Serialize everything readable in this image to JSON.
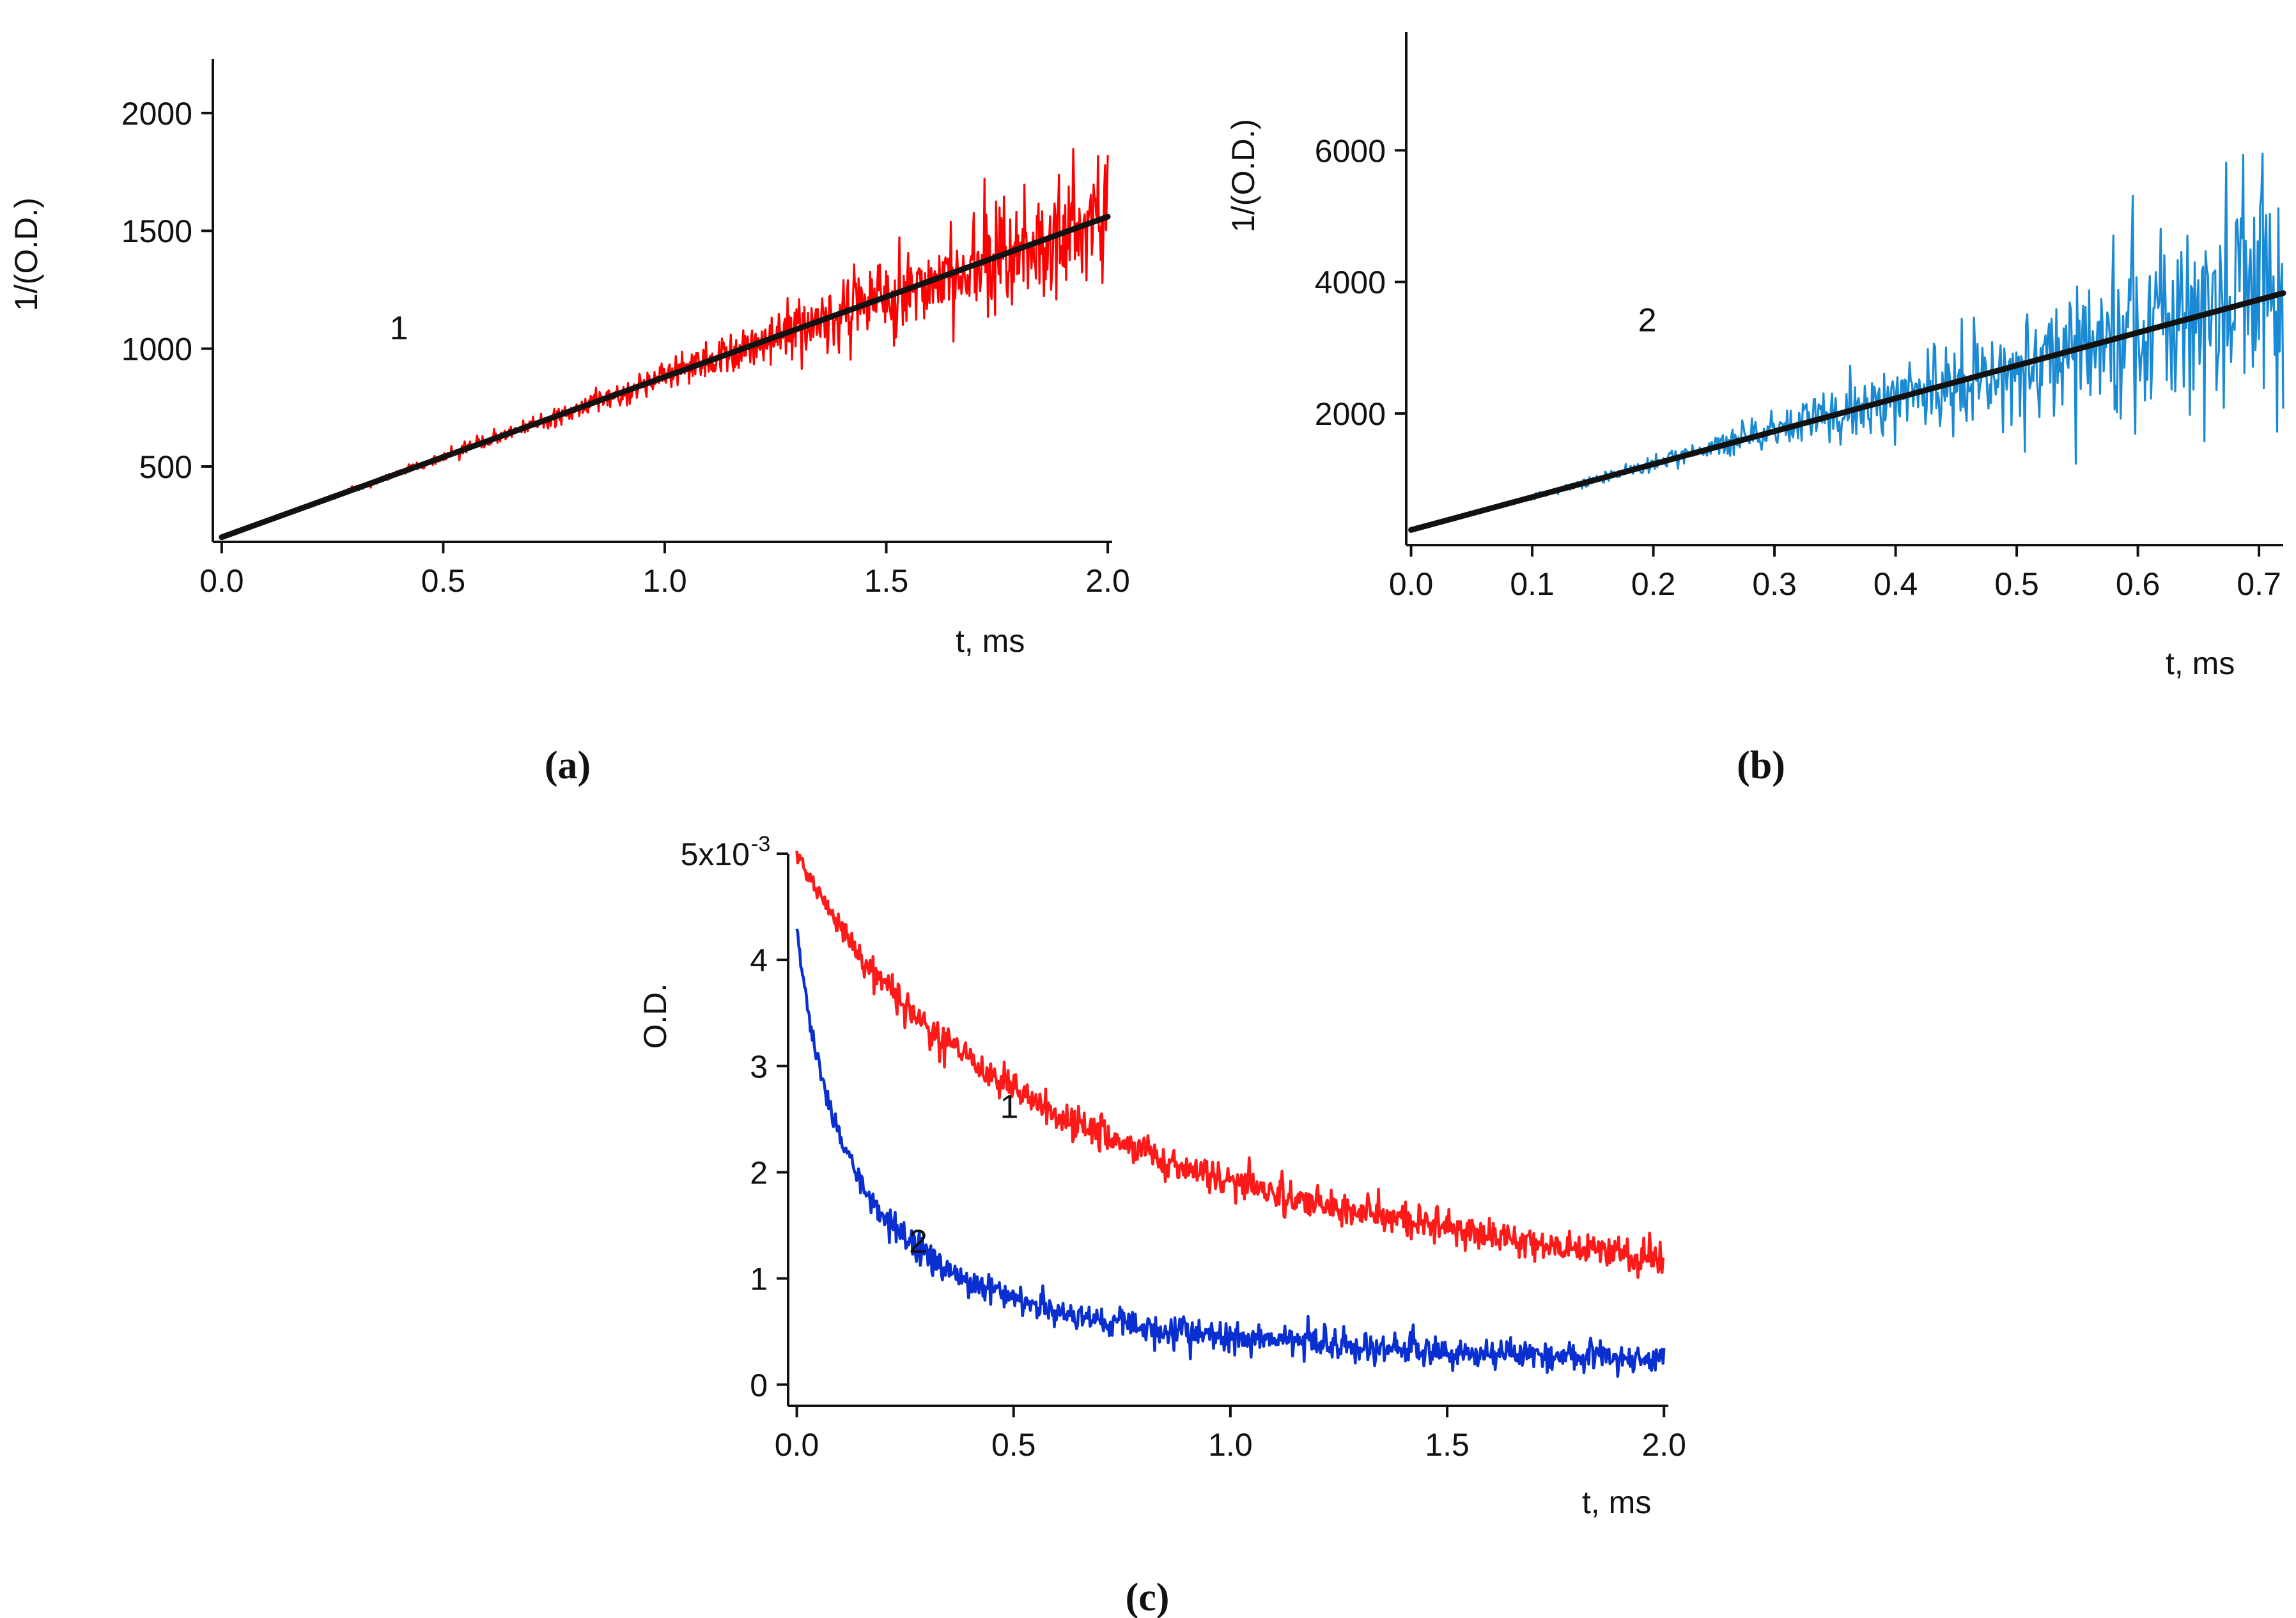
{
  "chart_data": [
    {
      "id": "a",
      "type": "line",
      "panel_label": "(a)",
      "xlabel": "t, ms",
      "ylabel": "1/(O.D.)",
      "xlim": [
        -0.02,
        2.01
      ],
      "ylim": [
        180,
        2230
      ],
      "xticks": [
        0.0,
        0.5,
        1.0,
        1.5,
        2.0
      ],
      "xtick_labels": [
        "0.0",
        "0.5",
        "1.0",
        "1.5",
        "2.0"
      ],
      "yticks": [
        500,
        1000,
        1500,
        2000
      ],
      "ytick_labels": [
        "500",
        "1000",
        "1500",
        "2000"
      ],
      "curve_label": "1",
      "curve_label_pos": [
        0.4,
        1040
      ],
      "series": [
        {
          "name": "data 1",
          "color": "#ff0000",
          "kind": "noisy",
          "x_range": [
            0,
            2.0
          ],
          "start": 200,
          "slope": 680,
          "noise": [
            0.01,
            0.1
          ],
          "points": 1000,
          "seed": 7
        },
        {
          "name": "fit 1",
          "color": "#111111",
          "kind": "fit",
          "x_range": [
            0,
            2.0
          ],
          "y": [
            200,
            1560
          ]
        }
      ]
    },
    {
      "id": "b",
      "type": "line",
      "panel_label": "(b)",
      "xlabel": "t, ms",
      "ylabel": "1/(O.D.)",
      "xlim": [
        -0.004,
        0.72
      ],
      "ylim": [
        0,
        7800
      ],
      "xticks": [
        0.0,
        0.1,
        0.2,
        0.3,
        0.4,
        0.5,
        0.6,
        0.7
      ],
      "xtick_labels": [
        "0.0",
        "0.1",
        "0.2",
        "0.3",
        "0.4",
        "0.5",
        "0.6",
        "0.7"
      ],
      "yticks": [
        2000,
        4000,
        6000
      ],
      "ytick_labels": [
        "2000",
        "4000",
        "6000"
      ],
      "curve_label": "2",
      "curve_label_pos": [
        0.195,
        3250
      ],
      "series": [
        {
          "name": "data 2",
          "color": "#1a8ad4",
          "kind": "noisy",
          "x_range": [
            0,
            0.72
          ],
          "start": 230,
          "slope": 5000,
          "noise": [
            0.02,
            0.28
          ],
          "points": 720,
          "seed": 13
        },
        {
          "name": "fit 2",
          "color": "#111111",
          "kind": "fit",
          "x_range": [
            0,
            0.72
          ],
          "y": [
            230,
            3830
          ]
        }
      ]
    },
    {
      "id": "c",
      "type": "line",
      "panel_label": "(c)",
      "xlabel": "t, ms",
      "ylabel": "O.D.",
      "xlim": [
        -0.02,
        2.01
      ],
      "ylim": [
        -0.0002,
        0.005
      ],
      "xticks": [
        0.0,
        0.5,
        1.0,
        1.5,
        2.0
      ],
      "xtick_labels": [
        "0.0",
        "0.5",
        "1.0",
        "1.5",
        "2.0"
      ],
      "yticks": [
        0,
        0.001,
        0.002,
        0.003,
        0.004,
        0.005
      ],
      "ytick_labels": [
        "0",
        "1",
        "2",
        "3",
        "4",
        "5x10"
      ],
      "ytop_exponent": "-3",
      "curve_labels": [
        {
          "text": "1",
          "pos": [
            0.49,
            0.00251
          ]
        },
        {
          "text": "2",
          "pos": [
            0.28,
            0.00124
          ]
        }
      ],
      "series": [
        {
          "name": "decay 1",
          "color": "#ff1a1a",
          "kind": "decay",
          "x_range": [
            0,
            2.0
          ],
          "a0": 0.005,
          "k": 1.6,
          "noise": 8e-05,
          "points": 900,
          "seed": 21
        },
        {
          "name": "decay 2",
          "color": "#0a2fd0",
          "kind": "decay",
          "x_range": [
            0,
            2.0
          ],
          "a0": 0.0043,
          "k": 8.5,
          "noise": 7e-05,
          "points": 900,
          "seed": 33
        }
      ]
    }
  ]
}
